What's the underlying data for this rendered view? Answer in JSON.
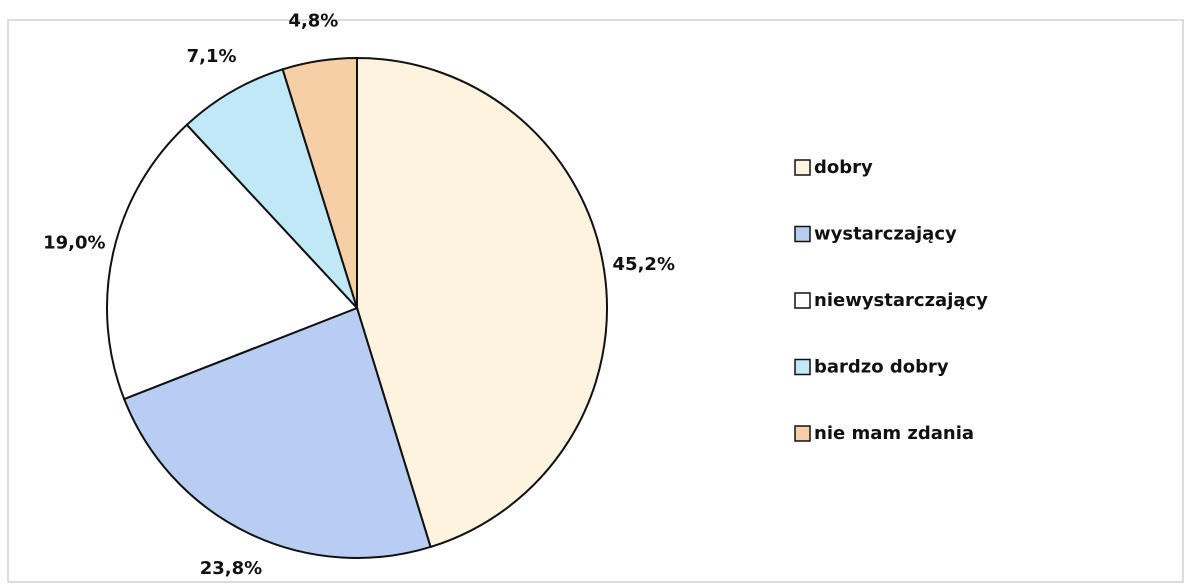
{
  "chart_data": {
    "type": "pie",
    "categories": [
      "dobry",
      "wystarczający",
      "niewystarczający",
      "bardzo dobry",
      "nie mam zdania"
    ],
    "values": [
      45.2,
      23.8,
      19.0,
      7.1,
      4.8
    ],
    "value_labels": [
      "45,2%",
      "23,8%",
      "19,0%",
      "7,1%",
      "4,8%"
    ],
    "colors": [
      "#fdf3df",
      "#b8cdf2",
      "#ffffff",
      "#c0e8f7",
      "#f5cfa6"
    ],
    "legend": "right"
  }
}
